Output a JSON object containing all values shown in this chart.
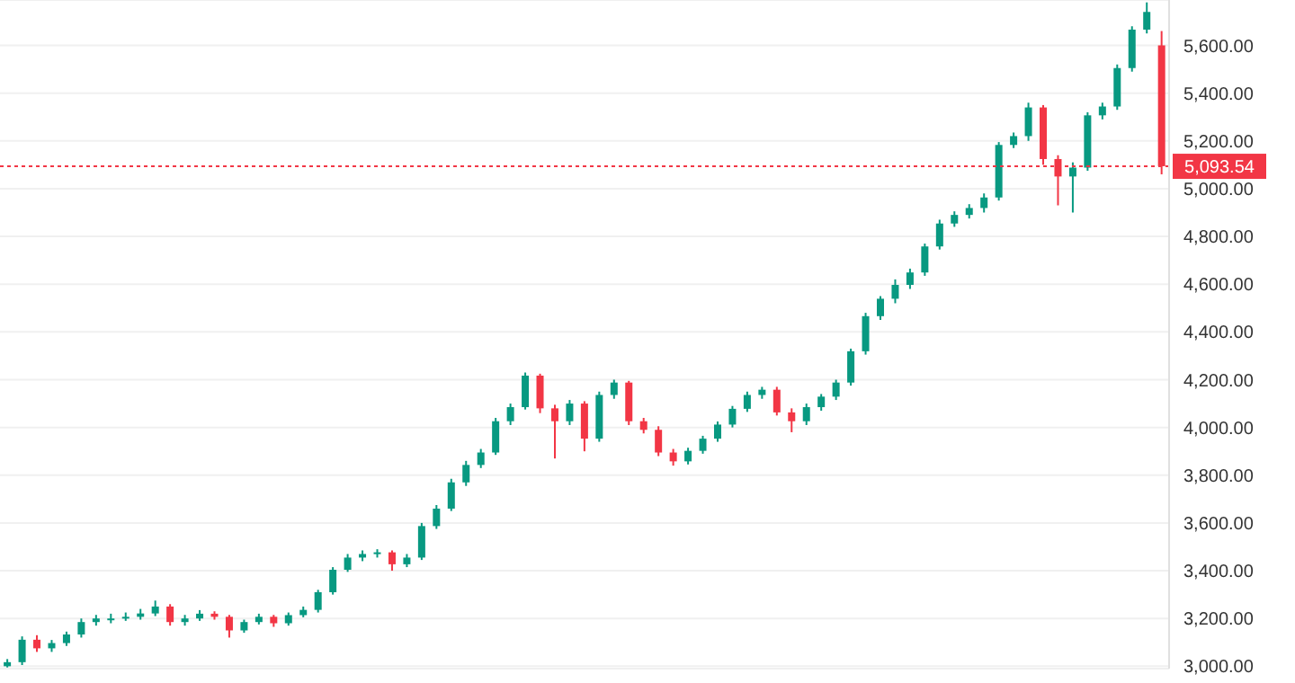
{
  "chart_data": {
    "type": "candlestick",
    "categories": [
      null,
      null,
      null,
      null,
      null,
      null,
      null,
      null,
      null,
      null,
      null,
      null,
      null,
      null,
      null,
      null,
      null,
      null,
      null,
      null,
      null,
      null,
      null,
      null,
      null,
      null,
      null,
      null,
      null,
      null,
      null,
      null,
      null,
      null,
      null,
      null,
      null,
      null,
      null,
      null,
      null,
      null,
      null,
      null,
      null,
      null,
      null,
      null,
      null,
      null,
      null,
      null,
      null,
      null,
      null,
      null,
      null,
      null,
      null,
      null,
      null,
      null,
      null,
      null,
      null,
      null,
      null,
      null,
      null,
      null,
      null,
      null,
      null,
      null,
      null,
      null,
      null,
      null,
      null
    ],
    "ohlc": [
      [
        3000,
        3030,
        2995,
        3017
      ],
      [
        3017,
        3125,
        3005,
        3111
      ],
      [
        3111,
        3130,
        3060,
        3075
      ],
      [
        3075,
        3110,
        3060,
        3097
      ],
      [
        3097,
        3145,
        3085,
        3133
      ],
      [
        3133,
        3200,
        3120,
        3185
      ],
      [
        3185,
        3215,
        3170,
        3200
      ],
      [
        3200,
        3220,
        3180,
        3200
      ],
      [
        3200,
        3225,
        3190,
        3207
      ],
      [
        3207,
        3240,
        3195,
        3221
      ],
      [
        3221,
        3275,
        3210,
        3250
      ],
      [
        3250,
        3260,
        3170,
        3185
      ],
      [
        3185,
        3215,
        3170,
        3200
      ],
      [
        3200,
        3235,
        3190,
        3220
      ],
      [
        3220,
        3230,
        3195,
        3207
      ],
      [
        3207,
        3215,
        3120,
        3150
      ],
      [
        3150,
        3195,
        3140,
        3185
      ],
      [
        3185,
        3220,
        3175,
        3207
      ],
      [
        3207,
        3215,
        3165,
        3180
      ],
      [
        3180,
        3225,
        3170,
        3214
      ],
      [
        3214,
        3250,
        3205,
        3236
      ],
      [
        3236,
        3320,
        3225,
        3310
      ],
      [
        3310,
        3415,
        3300,
        3404
      ],
      [
        3404,
        3470,
        3395,
        3455
      ],
      [
        3455,
        3485,
        3440,
        3470
      ],
      [
        3470,
        3490,
        3455,
        3477
      ],
      [
        3477,
        3485,
        3400,
        3427
      ],
      [
        3427,
        3470,
        3415,
        3455
      ],
      [
        3455,
        3600,
        3445,
        3587
      ],
      [
        3587,
        3675,
        3575,
        3660
      ],
      [
        3660,
        3785,
        3650,
        3770
      ],
      [
        3770,
        3860,
        3755,
        3843
      ],
      [
        3843,
        3910,
        3830,
        3895
      ],
      [
        3895,
        4040,
        3885,
        4026
      ],
      [
        4026,
        4100,
        4010,
        4085
      ],
      [
        4085,
        4230,
        4075,
        4217
      ],
      [
        4217,
        4225,
        4060,
        4080
      ],
      [
        4080,
        4095,
        3870,
        4026
      ],
      [
        4026,
        4115,
        4010,
        4100
      ],
      [
        4100,
        4110,
        3900,
        3953
      ],
      [
        3953,
        4150,
        3940,
        4136
      ],
      [
        4136,
        4200,
        4120,
        4188
      ],
      [
        4188,
        4195,
        4010,
        4026
      ],
      [
        4026,
        4040,
        3975,
        3990
      ],
      [
        3990,
        4005,
        3880,
        3895
      ],
      [
        3895,
        3910,
        3840,
        3858
      ],
      [
        3858,
        3915,
        3845,
        3902
      ],
      [
        3902,
        3965,
        3890,
        3953
      ],
      [
        3953,
        4025,
        3940,
        4012
      ],
      [
        4012,
        4090,
        4000,
        4078
      ],
      [
        4078,
        4150,
        4065,
        4136
      ],
      [
        4136,
        4170,
        4120,
        4158
      ],
      [
        4158,
        4170,
        4050,
        4063
      ],
      [
        4063,
        4080,
        3980,
        4026
      ],
      [
        4026,
        4100,
        4010,
        4085
      ],
      [
        4085,
        4140,
        4070,
        4129
      ],
      [
        4129,
        4200,
        4115,
        4188
      ],
      [
        4188,
        4330,
        4175,
        4319
      ],
      [
        4319,
        4480,
        4305,
        4466
      ],
      [
        4466,
        4550,
        4450,
        4539
      ],
      [
        4539,
        4620,
        4520,
        4597
      ],
      [
        4597,
        4665,
        4580,
        4649
      ],
      [
        4649,
        4770,
        4635,
        4758
      ],
      [
        4758,
        4870,
        4745,
        4854
      ],
      [
        4854,
        4905,
        4840,
        4890
      ],
      [
        4890,
        4935,
        4875,
        4919
      ],
      [
        4919,
        4980,
        4900,
        4963
      ],
      [
        4963,
        5195,
        4950,
        5183
      ],
      [
        5183,
        5235,
        5170,
        5220
      ],
      [
        5220,
        5360,
        5200,
        5340
      ],
      [
        5340,
        5350,
        5100,
        5124
      ],
      [
        5124,
        5140,
        4930,
        5051
      ],
      [
        5051,
        5110,
        4900,
        5088
      ],
      [
        5088,
        5320,
        5075,
        5307
      ],
      [
        5307,
        5360,
        5290,
        5344
      ],
      [
        5344,
        5520,
        5330,
        5505
      ],
      [
        5505,
        5680,
        5490,
        5666
      ],
      [
        5666,
        5780,
        5650,
        5740
      ],
      [
        5600,
        5660,
        5060,
        5094
      ]
    ],
    "ylim": [
      2990,
      5790
    ],
    "yticks": [
      {
        "value": 3000,
        "label": "3,000.00"
      },
      {
        "value": 3200,
        "label": "3,200.00"
      },
      {
        "value": 3400,
        "label": "3,400.00"
      },
      {
        "value": 3600,
        "label": "3,600.00"
      },
      {
        "value": 3800,
        "label": "3,800.00"
      },
      {
        "value": 4000,
        "label": "4,000.00"
      },
      {
        "value": 4200,
        "label": "4,200.00"
      },
      {
        "value": 4400,
        "label": "4,400.00"
      },
      {
        "value": 4600,
        "label": "4,600.00"
      },
      {
        "value": 4800,
        "label": "4,800.00"
      },
      {
        "value": 5000,
        "label": "5,000.00"
      },
      {
        "value": 5200,
        "label": "5,200.00"
      },
      {
        "value": 5400,
        "label": "5,400.00"
      },
      {
        "value": 5600,
        "label": "5,600.00"
      }
    ],
    "ref_lines": [
      {
        "axis": "y",
        "value": 5093.54,
        "label": "5,093.54",
        "color": "#f23645",
        "line_style": "dotted"
      }
    ],
    "grid": "y",
    "tick_labels": "y"
  }
}
